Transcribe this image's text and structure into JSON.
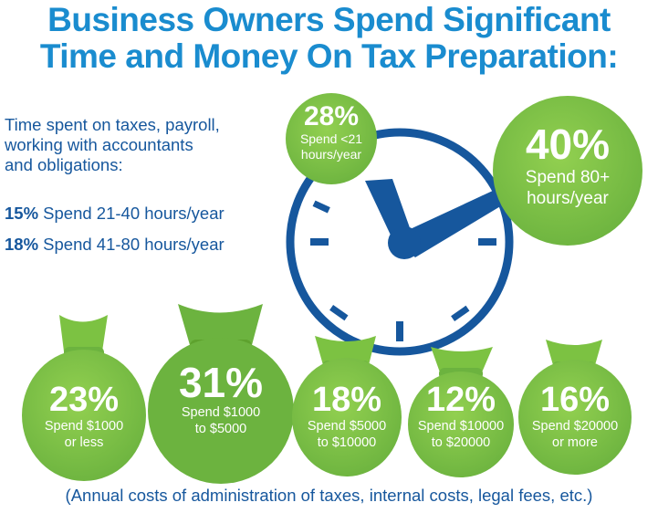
{
  "title_line1": "Business Owners Spend Significant",
  "title_line2": "Time and Money On Tax Preparation:",
  "intro": {
    "line1": "Time spent on taxes, payroll,",
    "line2": "working with accountants",
    "line3": "and obligations:"
  },
  "stats": [
    {
      "pct": "15%",
      "text": "Spend 21-40 hours/year"
    },
    {
      "pct": "18%",
      "text": "Spend 41-80 hours/year"
    }
  ],
  "clock_circles": [
    {
      "pct": "28%",
      "line1": "Spend <21",
      "line2": "hours/year"
    },
    {
      "pct": "40%",
      "line1": "Spend 80+",
      "line2": "hours/year"
    }
  ],
  "bags": [
    {
      "pct": "23%",
      "line1": "Spend $1000",
      "line2": "or less"
    },
    {
      "pct": "31%",
      "line1": "Spend $1000",
      "line2": "to $5000"
    },
    {
      "pct": "18%",
      "line1": "Spend $5000",
      "line2": "to $10000"
    },
    {
      "pct": "12%",
      "line1": "Spend $10000",
      "line2": "to $20000"
    },
    {
      "pct": "16%",
      "line1": "Spend $20000",
      "line2": "or more"
    }
  ],
  "footer": "(Annual costs of  administration of taxes, internal costs, legal fees, etc.)",
  "colors": {
    "title": "#1a8ccf",
    "body_text": "#16579d",
    "clock": "#16579d",
    "green": "#7cc242",
    "green_dark": "#5ea22e"
  }
}
